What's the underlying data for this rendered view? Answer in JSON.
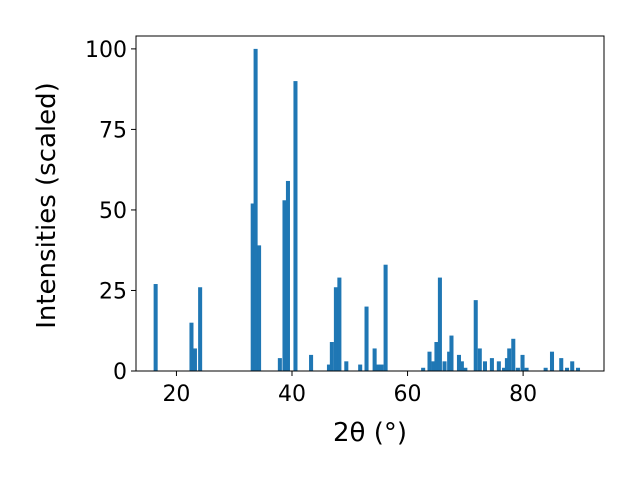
{
  "chart_data": {
    "type": "bar",
    "xlabel": "2θ (°)",
    "ylabel": "Intensities (scaled)",
    "xlim": [
      13,
      94
    ],
    "ylim": [
      0,
      104
    ],
    "xticks": [
      20,
      40,
      60,
      80
    ],
    "yticks": [
      0,
      25,
      50,
      75,
      100
    ],
    "grid": false,
    "bar_width": 0.7,
    "color": "#1f77b4",
    "x": [
      16.4,
      22.6,
      23.2,
      24.1,
      33.2,
      33.7,
      34.3,
      37.9,
      38.7,
      39.3,
      40.6,
      43.3,
      46.4,
      46.9,
      47.6,
      48.2,
      49.4,
      51.8,
      52.9,
      54.3,
      54.9,
      55.5,
      56.2,
      62.7,
      63.8,
      64.5,
      65.0,
      65.6,
      66.4,
      67.2,
      67.6,
      68.9,
      69.4,
      70.0,
      71.8,
      72.5,
      73.4,
      74.6,
      75.8,
      76.7,
      77.2,
      77.6,
      78.3,
      79.1,
      79.9,
      80.6,
      83.9,
      85.0,
      86.6,
      87.6,
      88.5,
      89.5
    ],
    "values": [
      27,
      15,
      7,
      26,
      52,
      100,
      39,
      4,
      53,
      59,
      90,
      5,
      2,
      9,
      26,
      29,
      3,
      2,
      20,
      7,
      2,
      2,
      33,
      1,
      6,
      3,
      9,
      29,
      3,
      6,
      11,
      5,
      3,
      1,
      22,
      7,
      3,
      4,
      3,
      1,
      4,
      7,
      10,
      1,
      5,
      1,
      1,
      6,
      4,
      1,
      3,
      1
    ]
  }
}
